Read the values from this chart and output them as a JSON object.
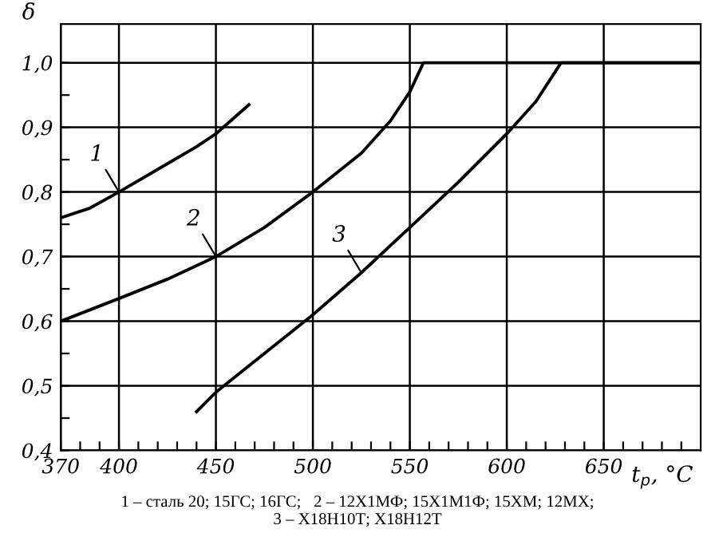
{
  "chart_data": {
    "type": "line",
    "xlabel": "t$_{p}$, °C",
    "ylabel": "δ",
    "xlim": [
      370,
      700
    ],
    "ylim": [
      0.4,
      1.06
    ],
    "xticks": [
      {
        "value": 370,
        "label": "370"
      },
      {
        "value": 380,
        "label": null
      },
      {
        "value": 390,
        "label": null
      },
      {
        "value": 400,
        "label": "400"
      },
      {
        "value": 410,
        "label": null
      },
      {
        "value": 420,
        "label": null
      },
      {
        "value": 430,
        "label": null
      },
      {
        "value": 440,
        "label": null
      },
      {
        "value": 450,
        "label": "450"
      },
      {
        "value": 460,
        "label": null
      },
      {
        "value": 470,
        "label": null
      },
      {
        "value": 480,
        "label": null
      },
      {
        "value": 490,
        "label": null
      },
      {
        "value": 500,
        "label": "500"
      },
      {
        "value": 510,
        "label": null
      },
      {
        "value": 520,
        "label": null
      },
      {
        "value": 530,
        "label": null
      },
      {
        "value": 540,
        "label": null
      },
      {
        "value": 550,
        "label": "550"
      },
      {
        "value": 560,
        "label": null
      },
      {
        "value": 570,
        "label": null
      },
      {
        "value": 580,
        "label": null
      },
      {
        "value": 590,
        "label": null
      },
      {
        "value": 600,
        "label": "600"
      },
      {
        "value": 610,
        "label": null
      },
      {
        "value": 620,
        "label": null
      },
      {
        "value": 630,
        "label": null
      },
      {
        "value": 640,
        "label": null
      },
      {
        "value": 650,
        "label": "650"
      },
      {
        "value": 660,
        "label": null
      },
      {
        "value": 670,
        "label": null
      },
      {
        "value": 680,
        "label": null
      },
      {
        "value": 690,
        "label": null
      }
    ],
    "yticks": [
      {
        "value": 0.4,
        "label": "0,4"
      },
      {
        "value": 0.45,
        "label": null
      },
      {
        "value": 0.5,
        "label": "0,5"
      },
      {
        "value": 0.55,
        "label": null
      },
      {
        "value": 0.6,
        "label": "0,6"
      },
      {
        "value": 0.65,
        "label": null
      },
      {
        "value": 0.7,
        "label": "0,7"
      },
      {
        "value": 0.75,
        "label": null
      },
      {
        "value": 0.8,
        "label": "0,8"
      },
      {
        "value": 0.85,
        "label": null
      },
      {
        "value": 0.9,
        "label": "0,9"
      },
      {
        "value": 0.95,
        "label": null
      },
      {
        "value": 1.0,
        "label": "1,0"
      }
    ],
    "grid": true,
    "marker": "none",
    "line_style": "solid",
    "legend": false,
    "series": [
      {
        "name": "1",
        "color": "#000000",
        "x": [
          370,
          385,
          400,
          420,
          440,
          450,
          467
        ],
        "values": [
          0.76,
          0.775,
          0.8,
          0.835,
          0.87,
          0.89,
          0.935
        ]
      },
      {
        "name": "2",
        "color": "#000000",
        "x": [
          370,
          400,
          425,
          450,
          475,
          500,
          525,
          540,
          550,
          557,
          700
        ],
        "values": [
          0.6,
          0.635,
          0.665,
          0.7,
          0.745,
          0.8,
          0.86,
          0.91,
          0.955,
          1.0,
          1.0
        ]
      },
      {
        "name": "3",
        "color": "#000000",
        "x": [
          440,
          450,
          475,
          500,
          525,
          550,
          575,
          600,
          615,
          628,
          700
        ],
        "values": [
          0.46,
          0.49,
          0.55,
          0.61,
          0.675,
          0.745,
          0.815,
          0.89,
          0.94,
          1.0,
          1.0
        ]
      }
    ],
    "annotations": [
      "1 – сталь 20; 15ГС; 16ГС;   2 – 12Х1МФ; 15Х1М1Ф; 15ХМ; 12МХ;\n3 – Х18Н10Т; Х18Н12Т"
    ]
  }
}
